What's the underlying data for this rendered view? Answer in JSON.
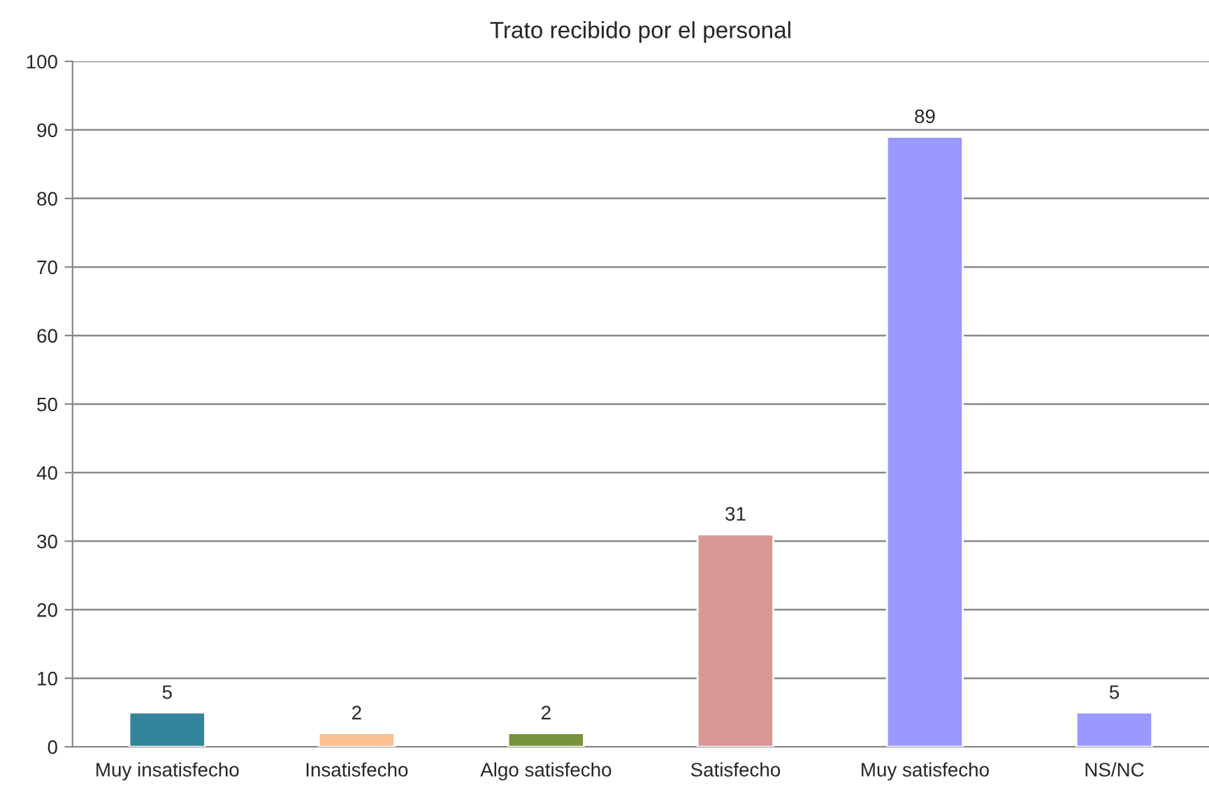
{
  "chart_data": {
    "type": "bar",
    "title": "Trato recibido por el personal",
    "categories": [
      "Muy insatisfecho",
      "Insatisfecho",
      "Algo satisfecho",
      "Satisfecho",
      "Muy satisfecho",
      "NS/NC"
    ],
    "values": [
      5,
      2,
      2,
      31,
      89,
      5
    ],
    "colors": [
      "#31849b",
      "#fac090",
      "#77933c",
      "#d99694",
      "#9999ff",
      "#9999ff"
    ],
    "ylim": [
      0,
      100
    ],
    "yticks": [
      0,
      10,
      20,
      30,
      40,
      50,
      60,
      70,
      80,
      90,
      100
    ],
    "grid": "y",
    "data_labels": true
  }
}
